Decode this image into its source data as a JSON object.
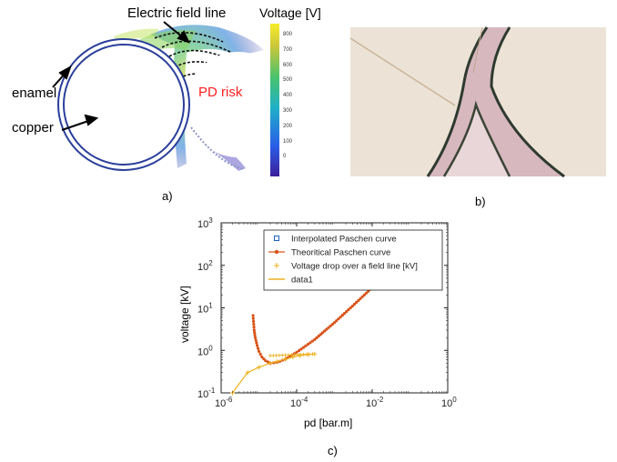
{
  "panel_a": {
    "label": "a)",
    "title": "Electric field line",
    "colorbar_title": "Voltage [V]",
    "colorbar_ticks": [
      "800",
      "700",
      "600",
      "500",
      "400",
      "300",
      "200",
      "100",
      "0"
    ],
    "enamel_label": "enamel",
    "copper_label": "copper",
    "pd_risk_label": "PD risk",
    "pd_risk_color": "#ff2020"
  },
  "panel_b": {
    "label": "b)"
  },
  "panel_c": {
    "label": "c)"
  },
  "chart_data": {
    "type": "line",
    "xlabel": "pd [bar.m]",
    "ylabel": "voltage [kV]",
    "xscale": "log",
    "yscale": "log",
    "xlim": [
      1e-06,
      1
    ],
    "ylim": [
      0.1,
      1000
    ],
    "xticks": [
      {
        "v": 1e-06,
        "base": "10",
        "exp": "-6"
      },
      {
        "v": 0.0001,
        "base": "10",
        "exp": "-4"
      },
      {
        "v": 0.01,
        "base": "10",
        "exp": "-2"
      },
      {
        "v": 1,
        "base": "10",
        "exp": "0"
      }
    ],
    "yticks": [
      {
        "v": 0.1,
        "base": "10",
        "exp": "-1"
      },
      {
        "v": 1,
        "base": "10",
        "exp": "0"
      },
      {
        "v": 10,
        "base": "10",
        "exp": "1"
      },
      {
        "v": 100,
        "base": "10",
        "exp": "2"
      },
      {
        "v": 1000,
        "base": "10",
        "exp": "3"
      }
    ],
    "legend_position": "top",
    "series": [
      {
        "name": "Interpolated Paschen curve",
        "color": "#1f5fbf",
        "marker": "square",
        "x": [],
        "y": []
      },
      {
        "name": "Theoritical Paschen curve",
        "color": "#d95319",
        "marker": "circle",
        "x": [
          7e-06,
          7.5e-06,
          8e-06,
          9e-06,
          1e-05,
          1.2e-05,
          1.5e-05,
          2e-05,
          3e-05,
          5e-05,
          0.0001,
          0.0003,
          0.001,
          0.003,
          0.01,
          0.02,
          0.03
        ],
        "y": [
          6.6,
          3.0,
          2.0,
          1.3,
          0.95,
          0.7,
          0.57,
          0.5,
          0.52,
          0.62,
          0.9,
          1.8,
          4.5,
          11,
          30,
          55,
          80
        ]
      },
      {
        "name": "Voltage drop over a field line [kV]",
        "color": "#edb120",
        "marker": "plus",
        "x": [
          2e-06,
          5e-06,
          1e-05,
          2e-05,
          3e-05,
          5e-05,
          8e-05,
          0.00012,
          0.0002,
          0.0003
        ],
        "y": [
          0.1,
          0.3,
          0.4,
          0.5,
          0.55,
          0.62,
          0.7,
          0.75,
          0.8,
          0.82
        ]
      },
      {
        "name": "data1",
        "color": "#edb120",
        "marker": "none",
        "x": [
          2e-06,
          5e-06,
          1e-05,
          2e-05,
          3e-05,
          5e-05,
          8e-05,
          0.00012,
          0.0002,
          0.0003
        ],
        "y": [
          0.1,
          0.3,
          0.4,
          0.5,
          0.55,
          0.62,
          0.7,
          0.75,
          0.8,
          0.82
        ]
      }
    ]
  }
}
